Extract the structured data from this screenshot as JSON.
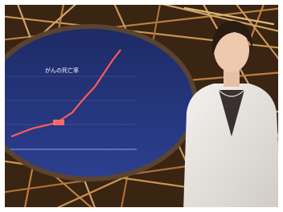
{
  "screen": {
    "title": "がんの死亡率"
  }
}
